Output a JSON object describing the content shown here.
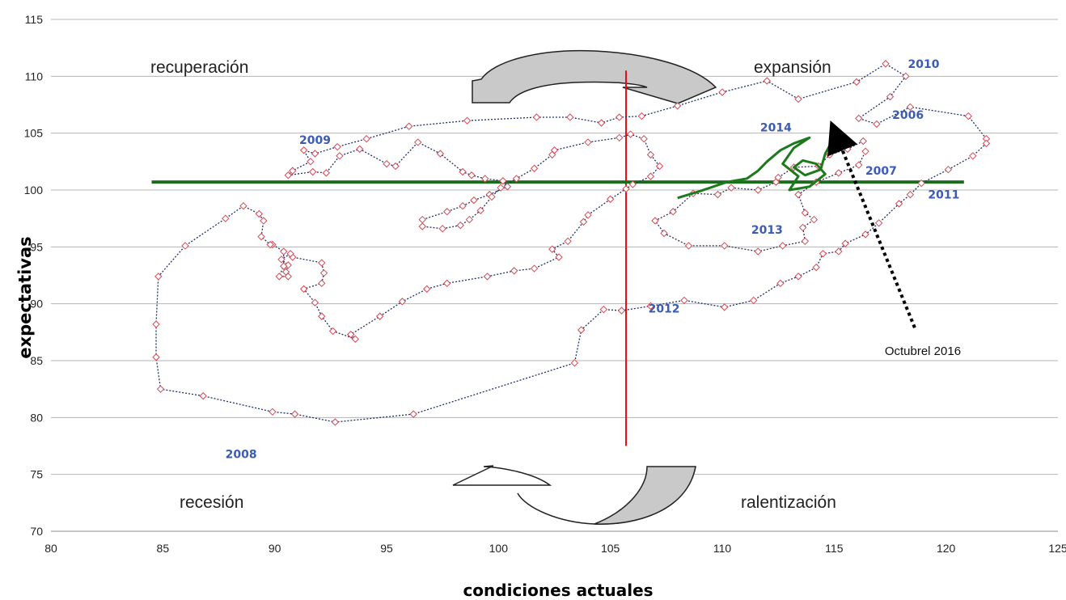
{
  "chart_data": {
    "type": "scatter",
    "xlabel": "condiciones actuales",
    "ylabel": "expectativas",
    "xlim": [
      80,
      125
    ],
    "ylim": [
      70,
      115
    ],
    "x_ticks": [
      80,
      85,
      90,
      95,
      100,
      105,
      110,
      115,
      120,
      125
    ],
    "y_ticks": [
      70,
      75,
      80,
      85,
      90,
      95,
      100,
      105,
      110,
      115
    ],
    "grid": "horizontal",
    "quadrants": {
      "top_left": "recuperación",
      "top_right": "expansión",
      "bottom_left": "recesión",
      "bottom_right": "ralentización"
    },
    "reference_lines": {
      "vertical_x": 105.7,
      "horizontal_y": 100.7
    },
    "year_labels": [
      {
        "text": "2006",
        "x": 118.3,
        "y": 106.6
      },
      {
        "text": "2007",
        "x": 117.1,
        "y": 101.7
      },
      {
        "text": "2008",
        "x": 88.5,
        "y": 76.8
      },
      {
        "text": "2009",
        "x": 91.8,
        "y": 104.4
      },
      {
        "text": "2010",
        "x": 119.0,
        "y": 111.1
      },
      {
        "text": "2011",
        "x": 119.9,
        "y": 99.6
      },
      {
        "text": "2012",
        "x": 107.4,
        "y": 89.6
      },
      {
        "text": "2013",
        "x": 112.0,
        "y": 96.5
      },
      {
        "text": "2014",
        "x": 112.4,
        "y": 105.5
      }
    ],
    "annotation": {
      "text": "Octubrel 2016",
      "x": 118.6,
      "y": 87.9,
      "target_x": 115.1,
      "target_y": 104.8
    },
    "series": [
      {
        "color": "#1f2f6b",
        "marker_color": "#d44a55",
        "points": [
          [
            121.8,
            104.5
          ],
          [
            121.0,
            106.5
          ],
          [
            118.4,
            107.3
          ],
          [
            116.9,
            105.8
          ],
          [
            116.1,
            106.3
          ],
          [
            117.5,
            108.2
          ],
          [
            118.2,
            110.0
          ],
          [
            117.3,
            111.1
          ],
          [
            116.0,
            109.5
          ],
          [
            113.4,
            108.0
          ],
          [
            112.0,
            109.6
          ],
          [
            110.0,
            108.6
          ],
          [
            108.0,
            107.4
          ],
          [
            106.4,
            106.5
          ],
          [
            105.4,
            106.4
          ],
          [
            104.6,
            105.9
          ],
          [
            103.2,
            106.4
          ],
          [
            101.7,
            106.4
          ],
          [
            98.6,
            106.1
          ],
          [
            96.0,
            105.6
          ],
          [
            94.1,
            104.5
          ],
          [
            92.8,
            103.8
          ],
          [
            91.8,
            103.2
          ],
          [
            91.3,
            103.5
          ],
          [
            91.6,
            102.5
          ],
          [
            90.8,
            101.7
          ],
          [
            90.6,
            101.3
          ],
          [
            91.7,
            101.6
          ],
          [
            92.3,
            101.5
          ],
          [
            92.9,
            103.0
          ],
          [
            93.8,
            103.6
          ],
          [
            95.0,
            102.3
          ],
          [
            95.4,
            102.1
          ],
          [
            96.4,
            104.2
          ],
          [
            97.4,
            103.2
          ],
          [
            98.4,
            101.6
          ],
          [
            98.8,
            101.3
          ],
          [
            99.4,
            101.0
          ],
          [
            100.2,
            100.8
          ],
          [
            100.4,
            100.3
          ],
          [
            99.6,
            99.6
          ],
          [
            98.9,
            99.1
          ],
          [
            98.4,
            98.6
          ],
          [
            97.7,
            98.1
          ],
          [
            96.6,
            97.4
          ],
          [
            96.6,
            96.8
          ],
          [
            97.5,
            96.6
          ],
          [
            98.3,
            96.9
          ],
          [
            98.7,
            97.4
          ],
          [
            99.2,
            98.2
          ],
          [
            99.7,
            99.4
          ],
          [
            100.1,
            100.2
          ],
          [
            100.8,
            101.0
          ],
          [
            101.6,
            101.9
          ],
          [
            102.4,
            103.1
          ],
          [
            102.5,
            103.5
          ],
          [
            104.0,
            104.2
          ],
          [
            105.4,
            104.6
          ],
          [
            105.9,
            104.9
          ],
          [
            106.5,
            104.5
          ],
          [
            106.8,
            103.1
          ],
          [
            107.2,
            102.1
          ],
          [
            106.8,
            101.2
          ],
          [
            106.0,
            100.5
          ],
          [
            105.7,
            100.1
          ],
          [
            105.0,
            99.2
          ],
          [
            104.0,
            97.8
          ],
          [
            103.8,
            97.2
          ],
          [
            103.1,
            95.5
          ],
          [
            102.4,
            94.8
          ],
          [
            102.7,
            94.1
          ],
          [
            101.6,
            93.1
          ],
          [
            100.7,
            92.9
          ],
          [
            99.5,
            92.4
          ],
          [
            97.7,
            91.8
          ],
          [
            96.8,
            91.3
          ],
          [
            95.7,
            90.2
          ],
          [
            94.7,
            88.9
          ],
          [
            93.4,
            87.3
          ],
          [
            93.6,
            86.9
          ],
          [
            92.6,
            87.6
          ],
          [
            92.1,
            88.9
          ],
          [
            91.8,
            90.1
          ],
          [
            91.3,
            91.3
          ],
          [
            92.1,
            91.8
          ],
          [
            92.2,
            92.7
          ],
          [
            92.1,
            93.6
          ],
          [
            90.8,
            94.1
          ],
          [
            90.7,
            94.4
          ],
          [
            90.3,
            93.9
          ],
          [
            90.6,
            93.4
          ],
          [
            90.5,
            92.8
          ],
          [
            90.6,
            92.4
          ],
          [
            90.2,
            92.4
          ],
          [
            90.4,
            93.3
          ],
          [
            90.4,
            94.6
          ],
          [
            89.9,
            95.2
          ],
          [
            89.8,
            95.2
          ],
          [
            89.4,
            95.9
          ],
          [
            89.5,
            97.3
          ],
          [
            89.3,
            97.9
          ],
          [
            88.6,
            98.6
          ],
          [
            87.8,
            97.5
          ],
          [
            86.0,
            95.1
          ],
          [
            84.8,
            92.4
          ],
          [
            84.7,
            88.2
          ],
          [
            84.7,
            85.3
          ],
          [
            84.9,
            82.5
          ],
          [
            86.8,
            81.9
          ],
          [
            89.9,
            80.5
          ],
          [
            90.9,
            80.3
          ],
          [
            92.7,
            79.6
          ],
          [
            96.2,
            80.3
          ],
          [
            103.4,
            84.8
          ],
          [
            103.7,
            87.7
          ],
          [
            104.7,
            89.5
          ],
          [
            105.5,
            89.4
          ],
          [
            106.8,
            89.8
          ],
          [
            108.3,
            90.3
          ],
          [
            110.1,
            89.7
          ],
          [
            111.4,
            90.3
          ],
          [
            112.6,
            91.8
          ],
          [
            113.4,
            92.4
          ],
          [
            114.2,
            93.2
          ],
          [
            114.5,
            94.4
          ],
          [
            115.2,
            94.6
          ],
          [
            115.5,
            95.3
          ],
          [
            116.4,
            96.1
          ],
          [
            117.0,
            97.1
          ],
          [
            117.9,
            98.8
          ],
          [
            118.4,
            99.6
          ],
          [
            118.9,
            100.6
          ],
          [
            120.1,
            101.8
          ],
          [
            121.2,
            103.0
          ],
          [
            121.8,
            104.1
          ]
        ]
      },
      {
        "color": "#2f2f5a",
        "marker_color": "#d44a55",
        "points": [
          [
            116.3,
            104.3
          ],
          [
            115.6,
            103.6
          ],
          [
            114.8,
            103.1
          ],
          [
            114.3,
            102.1
          ],
          [
            113.2,
            102.0
          ],
          [
            112.5,
            101.1
          ],
          [
            112.4,
            100.7
          ],
          [
            111.6,
            100.0
          ],
          [
            110.4,
            100.2
          ],
          [
            109.8,
            99.6
          ],
          [
            108.7,
            99.7
          ],
          [
            107.8,
            98.1
          ],
          [
            107.0,
            97.3
          ],
          [
            107.4,
            96.2
          ],
          [
            108.5,
            95.1
          ],
          [
            110.1,
            95.1
          ],
          [
            111.6,
            94.6
          ],
          [
            112.7,
            95.1
          ],
          [
            113.7,
            95.5
          ],
          [
            113.6,
            96.7
          ],
          [
            114.1,
            97.4
          ],
          [
            113.7,
            98.0
          ],
          [
            113.4,
            99.6
          ],
          [
            114.2,
            100.7
          ],
          [
            115.2,
            101.5
          ],
          [
            116.1,
            102.2
          ],
          [
            116.4,
            103.4
          ]
        ]
      }
    ],
    "highlight_series": {
      "color": "#1b7a1b",
      "points": [
        [
          108.0,
          99.3
        ],
        [
          109.0,
          99.9
        ],
        [
          110.2,
          100.7
        ],
        [
          111.1,
          101.0
        ],
        [
          111.6,
          101.7
        ],
        [
          112.0,
          102.5
        ],
        [
          112.6,
          103.5
        ],
        [
          113.2,
          104.1
        ],
        [
          113.9,
          104.6
        ],
        [
          113.2,
          103.7
        ],
        [
          112.7,
          102.3
        ],
        [
          113.4,
          101.2
        ],
        [
          113.0,
          100.0
        ],
        [
          113.9,
          100.3
        ],
        [
          114.6,
          101.4
        ],
        [
          114.2,
          102.3
        ],
        [
          113.6,
          102.6
        ],
        [
          113.2,
          102.0
        ],
        [
          113.7,
          101.3
        ],
        [
          114.4,
          101.8
        ],
        [
          114.6,
          103.2
        ],
        [
          115.0,
          104.6
        ],
        [
          115.1,
          104.8
        ]
      ]
    }
  }
}
